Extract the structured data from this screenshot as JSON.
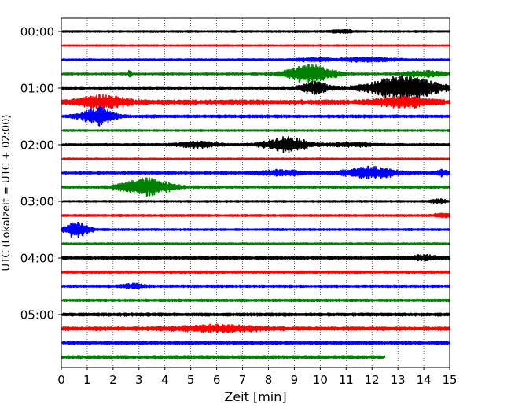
{
  "chart_data": {
    "type": "line",
    "chart_kind": "helicorder",
    "xlabel": "Zeit  [min]",
    "ylabel": "UTC (Lokalzeit = UTC + 02:00)",
    "xlim": [
      0,
      15
    ],
    "x_ticks": [
      0,
      1,
      2,
      3,
      4,
      5,
      6,
      7,
      8,
      9,
      10,
      11,
      12,
      13,
      14,
      15
    ],
    "x_tick_labels": [
      "0",
      "1",
      "2",
      "3",
      "4",
      "5",
      "6",
      "7",
      "8",
      "9",
      "10",
      "11",
      "12",
      "13",
      "14",
      "15"
    ],
    "y_tick_labels": [
      "00:00",
      "01:00",
      "02:00",
      "03:00",
      "04:00",
      "05:00"
    ],
    "minutes_per_trace": 15,
    "grid": {
      "x": true,
      "y": false,
      "style": "dotted"
    },
    "color_cycle": [
      "#000000",
      "#ff0000",
      "#0000ff",
      "#008000"
    ],
    "traces": [
      {
        "row": 0,
        "color": "#000000",
        "noise": 0.9,
        "end_min": 15,
        "events": [
          {
            "t": 10.9,
            "amp": 1.8,
            "width": 0.4
          }
        ]
      },
      {
        "row": 1,
        "color": "#ff0000",
        "noise": 0.7,
        "end_min": 15,
        "events": []
      },
      {
        "row": 2,
        "color": "#0000ff",
        "noise": 0.9,
        "end_min": 15,
        "events": [
          {
            "t": 11.8,
            "amp": 1.8,
            "width": 1.2
          },
          {
            "t": 9.7,
            "amp": 1.5,
            "width": 0.6
          }
        ]
      },
      {
        "row": 3,
        "color": "#008000",
        "noise": 1.0,
        "end_min": 15,
        "events": [
          {
            "t": 9.6,
            "amp": 9.0,
            "width": 0.9
          },
          {
            "t": 2.65,
            "amp": 5.0,
            "width": 0.05
          },
          {
            "t": 14.0,
            "amp": 3.0,
            "width": 0.8
          }
        ]
      },
      {
        "row": 4,
        "color": "#000000",
        "noise": 1.5,
        "end_min": 15,
        "events": [
          {
            "t": 13.2,
            "amp": 12.0,
            "width": 1.3
          },
          {
            "t": 9.8,
            "amp": 6.0,
            "width": 0.5
          }
        ]
      },
      {
        "row": 5,
        "color": "#ff0000",
        "noise": 2.4,
        "end_min": 15,
        "events": [
          {
            "t": 1.6,
            "amp": 6.0,
            "width": 0.9
          },
          {
            "t": 13.2,
            "amp": 4.0,
            "width": 1.0
          }
        ]
      },
      {
        "row": 6,
        "color": "#0000ff",
        "noise": 1.5,
        "end_min": 15,
        "events": [
          {
            "t": 1.4,
            "amp": 9.0,
            "width": 0.6
          }
        ]
      },
      {
        "row": 7,
        "color": "#008000",
        "noise": 0.9,
        "end_min": 15,
        "events": []
      },
      {
        "row": 8,
        "color": "#000000",
        "noise": 1.2,
        "end_min": 15,
        "events": [
          {
            "t": 8.7,
            "amp": 8.0,
            "width": 0.8
          },
          {
            "t": 5.3,
            "amp": 2.5,
            "width": 0.8
          },
          {
            "t": 11.2,
            "amp": 1.5,
            "width": 0.8
          }
        ]
      },
      {
        "row": 9,
        "color": "#ff0000",
        "noise": 0.8,
        "end_min": 15,
        "events": []
      },
      {
        "row": 10,
        "color": "#0000ff",
        "noise": 1.3,
        "end_min": 15,
        "events": [
          {
            "t": 11.9,
            "amp": 6.0,
            "width": 1.0
          },
          {
            "t": 8.5,
            "amp": 2.5,
            "width": 0.8
          },
          {
            "t": 14.8,
            "amp": 3.0,
            "width": 0.3
          }
        ]
      },
      {
        "row": 11,
        "color": "#008000",
        "noise": 1.3,
        "end_min": 15,
        "events": [
          {
            "t": 3.3,
            "amp": 9.0,
            "width": 0.9
          }
        ]
      },
      {
        "row": 12,
        "color": "#000000",
        "noise": 0.9,
        "end_min": 15,
        "events": [
          {
            "t": 14.6,
            "amp": 2.0,
            "width": 0.3
          }
        ]
      },
      {
        "row": 13,
        "color": "#ff0000",
        "noise": 1.0,
        "end_min": 15,
        "events": [
          {
            "t": 14.7,
            "amp": 2.0,
            "width": 0.3
          }
        ]
      },
      {
        "row": 14,
        "color": "#0000ff",
        "noise": 1.0,
        "end_min": 15,
        "events": [
          {
            "t": 0.6,
            "amp": 8.0,
            "width": 0.45
          }
        ]
      },
      {
        "row": 15,
        "color": "#008000",
        "noise": 0.9,
        "end_min": 15,
        "events": []
      },
      {
        "row": 16,
        "color": "#000000",
        "noise": 1.5,
        "end_min": 15,
        "events": [
          {
            "t": 14.0,
            "amp": 2.5,
            "width": 0.5
          }
        ]
      },
      {
        "row": 17,
        "color": "#ff0000",
        "noise": 1.3,
        "end_min": 15,
        "events": []
      },
      {
        "row": 18,
        "color": "#0000ff",
        "noise": 1.3,
        "end_min": 15,
        "events": [
          {
            "t": 2.8,
            "amp": 2.0,
            "width": 0.4
          }
        ]
      },
      {
        "row": 19,
        "color": "#008000",
        "noise": 1.3,
        "end_min": 15,
        "events": []
      },
      {
        "row": 20,
        "color": "#000000",
        "noise": 1.6,
        "end_min": 15,
        "events": []
      },
      {
        "row": 21,
        "color": "#ff0000",
        "noise": 1.9,
        "end_min": 15,
        "events": [
          {
            "t": 6.0,
            "amp": 3.0,
            "width": 1.5
          }
        ]
      },
      {
        "row": 22,
        "color": "#0000ff",
        "noise": 1.5,
        "end_min": 15,
        "events": []
      },
      {
        "row": 23,
        "color": "#008000",
        "noise": 1.6,
        "end_min": 12.5,
        "events": []
      }
    ]
  }
}
